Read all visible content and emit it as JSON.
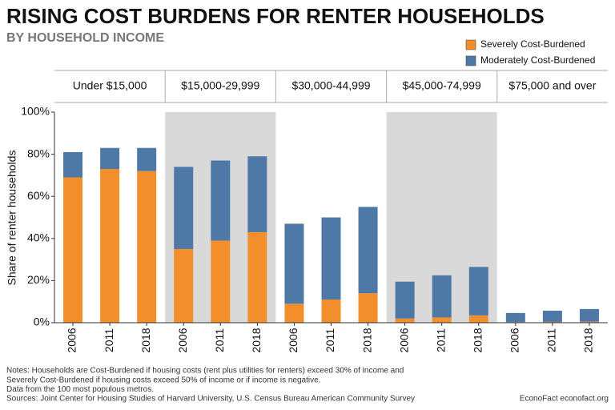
{
  "chart_data": {
    "type": "bar",
    "stacked": true,
    "title": "RISING COST BURDENS FOR RENTER HOUSEHOLDS",
    "subtitle": "BY HOUSEHOLD INCOME",
    "y_label": "Share of renter households",
    "groups": [
      "Under $15,000",
      "$15,000-29,999",
      "$30,000-44,999",
      "$45,000-74,999",
      "$75,000 and over"
    ],
    "group_colors": [
      "#ffffff",
      "#d9d9d9",
      "#ffffff",
      "#d9d9d9",
      "#ffffff"
    ],
    "categories": [
      "2006",
      "2011",
      "2018",
      "2006",
      "2011",
      "2018",
      "2006",
      "2011",
      "2018",
      "2006",
      "2011",
      "2018",
      "2006",
      "2011",
      "2018"
    ],
    "series": [
      {
        "name": "Severely Cost-Burdened",
        "color": "#f28e2b",
        "values": [
          69,
          73,
          72,
          35,
          39,
          43,
          9,
          11,
          14,
          2,
          2.5,
          3.5,
          0.3,
          0.4,
          0.5
        ]
      },
      {
        "name": "Moderately Cost-Burdened",
        "color": "#4e79a7",
        "values": [
          12,
          10,
          11,
          39,
          38,
          36,
          38,
          39,
          41,
          17.5,
          20,
          23,
          4.3,
          5.3,
          6
        ]
      }
    ],
    "ylim": [
      0,
      100
    ],
    "yticks": [
      {
        "value": 0,
        "label": "0%"
      },
      {
        "value": 20,
        "label": "20%"
      },
      {
        "value": 40,
        "label": "40%"
      },
      {
        "value": 60,
        "label": "60%"
      },
      {
        "value": 80,
        "label": "80%"
      },
      {
        "value": 100,
        "label": "100%"
      }
    ],
    "legend": "top-right",
    "notes": [
      "Notes: Households are Cost-Burdened if housing costs (rent plus utilities for renters) exceed 30% of income and",
      "Severely Cost-Burdened if housing costs exceed 50% of income or if income is negative.",
      "Data from the 100 most populous metros.",
      "Sources: Joint Center for Housing Studies of Harvard University, U.S. Census Bureau American Community Survey"
    ],
    "credit": "EconoFact  econofact.org"
  }
}
